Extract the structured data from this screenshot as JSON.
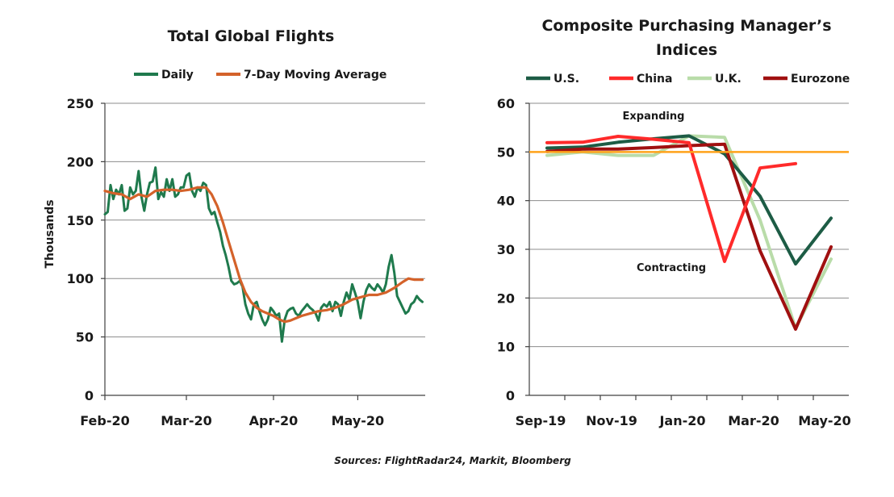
{
  "colors": {
    "daily": "#1f7a4d",
    "ma": "#d4622a",
    "us": "#1d5c45",
    "china": "#ff2a2a",
    "uk": "#b9dca9",
    "eurozone": "#a01010",
    "fifty_line": "#ffa21a"
  },
  "source_text": "Sources: FlightRadar24, Markit, Bloomberg",
  "chart_data": [
    {
      "type": "line",
      "title": "Total Global Flights",
      "ylabel": "Thousands",
      "xlabel": "",
      "ylim": [
        0,
        250
      ],
      "yticks": [
        0,
        50,
        100,
        150,
        200,
        250
      ],
      "xlim": [
        0,
        114
      ],
      "xticks": [
        {
          "x": 0,
          "label": "Feb-20"
        },
        {
          "x": 29,
          "label": "Mar-20"
        },
        {
          "x": 60,
          "label": "Apr-20"
        },
        {
          "x": 90,
          "label": "May-20"
        }
      ],
      "grid": "horizontal",
      "legend_position": "top",
      "series": [
        {
          "name": "Daily",
          "color_key": "daily",
          "x": [
            0,
            1,
            2,
            3,
            4,
            5,
            6,
            7,
            8,
            9,
            10,
            11,
            12,
            13,
            14,
            15,
            16,
            17,
            18,
            19,
            20,
            21,
            22,
            23,
            24,
            25,
            26,
            27,
            28,
            29,
            30,
            31,
            32,
            33,
            34,
            35,
            36,
            37,
            38,
            39,
            40,
            41,
            42,
            43,
            44,
            45,
            46,
            47,
            48,
            49,
            50,
            51,
            52,
            53,
            54,
            55,
            56,
            57,
            58,
            59,
            60,
            61,
            62,
            63,
            64,
            65,
            66,
            67,
            68,
            69,
            70,
            71,
            72,
            73,
            74,
            75,
            76,
            77,
            78,
            79,
            80,
            81,
            82,
            83,
            84,
            85,
            86,
            87,
            88,
            89,
            90,
            91,
            92,
            93,
            94,
            95,
            96,
            97,
            98,
            99,
            100,
            101,
            102,
            103,
            104,
            105,
            106,
            107,
            108,
            109,
            110,
            111,
            112,
            113
          ],
          "y": [
            155,
            157,
            180,
            168,
            176,
            172,
            180,
            158,
            160,
            178,
            172,
            175,
            192,
            170,
            158,
            172,
            182,
            183,
            195,
            168,
            174,
            170,
            185,
            175,
            185,
            170,
            172,
            178,
            178,
            188,
            190,
            175,
            170,
            178,
            175,
            182,
            180,
            160,
            155,
            157,
            148,
            140,
            128,
            120,
            110,
            98,
            95,
            96,
            98,
            93,
            78,
            70,
            65,
            78,
            80,
            72,
            65,
            60,
            65,
            75,
            72,
            68,
            70,
            46,
            65,
            72,
            74,
            75,
            70,
            68,
            72,
            75,
            78,
            75,
            73,
            70,
            64,
            75,
            78,
            76,
            80,
            72,
            80,
            78,
            68,
            80,
            88,
            82,
            95,
            88,
            80,
            66,
            80,
            90,
            95,
            92,
            90,
            95,
            92,
            88,
            95,
            110,
            120,
            105,
            85,
            80,
            75,
            70,
            72,
            78,
            80,
            85,
            82,
            80
          ]
        },
        {
          "name": "7-Day Moving Average",
          "color_key": "ma",
          "x": [
            0,
            3,
            6,
            9,
            12,
            15,
            18,
            21,
            24,
            27,
            30,
            33,
            36,
            38,
            40,
            42,
            44,
            46,
            48,
            50,
            52,
            54,
            56,
            58,
            60,
            62,
            64,
            66,
            68,
            70,
            73,
            76,
            79,
            82,
            85,
            88,
            91,
            94,
            97,
            100,
            103,
            106,
            108,
            110,
            113
          ],
          "y": [
            175,
            173,
            172,
            168,
            172,
            170,
            175,
            176,
            176,
            175,
            176,
            178,
            178,
            172,
            162,
            148,
            132,
            116,
            100,
            88,
            80,
            75,
            72,
            70,
            68,
            65,
            63,
            64,
            66,
            68,
            70,
            72,
            73,
            75,
            78,
            82,
            84,
            86,
            86,
            88,
            92,
            97,
            100,
            99,
            99
          ]
        }
      ]
    },
    {
      "type": "line",
      "title": "Composite Purchasing Manager’s Indices",
      "xlabel": "",
      "ylabel": "",
      "ylim": [
        0,
        60
      ],
      "yticks": [
        0,
        10,
        20,
        30,
        40,
        50,
        60
      ],
      "xlim": [
        0,
        9
      ],
      "xticks": [
        {
          "x": 0.25,
          "label": "Sep-19"
        },
        {
          "x": 2.25,
          "label": "Nov-19"
        },
        {
          "x": 4.25,
          "label": "Jan-20"
        },
        {
          "x": 6.25,
          "label": "Mar-20"
        },
        {
          "x": 8.25,
          "label": "May-20"
        }
      ],
      "grid": "horizontal",
      "legend_position": "top",
      "reference_line": {
        "y": 50,
        "color_key": "fifty_line"
      },
      "annotations": [
        {
          "text": "Expanding",
          "x": 3.5,
          "y": 56.7
        },
        {
          "text": "Contracting",
          "x": 4.0,
          "y": 25.5
        }
      ],
      "series": [
        {
          "name": "U.S.",
          "color_key": "us",
          "x": [
            0.5,
            1.5,
            2.5,
            3.5,
            4.5,
            5.5,
            6.5,
            7.5,
            8.5
          ],
          "y": [
            50.8,
            51.0,
            52.0,
            52.7,
            53.3,
            49.6,
            40.9,
            27.0,
            36.4
          ]
        },
        {
          "name": "China",
          "color_key": "china",
          "x": [
            0.5,
            1.5,
            2.5,
            3.5,
            4.5,
            5.5,
            6.5,
            7.5
          ],
          "y": [
            51.9,
            52.0,
            53.2,
            52.6,
            51.9,
            27.5,
            46.7,
            47.6
          ]
        },
        {
          "name": "U.K.",
          "color_key": "uk",
          "x": [
            0.5,
            1.5,
            2.5,
            3.5,
            4.5,
            5.5,
            6.5,
            7.5,
            8.5
          ],
          "y": [
            49.3,
            50.0,
            49.3,
            49.3,
            53.3,
            53.0,
            36.0,
            13.8,
            28.0
          ]
        },
        {
          "name": "Eurozone",
          "color_key": "eurozone",
          "x": [
            0.5,
            1.5,
            2.5,
            3.5,
            4.5,
            5.5,
            6.5,
            7.5,
            8.5
          ],
          "y": [
            50.1,
            50.6,
            50.6,
            50.9,
            51.3,
            51.6,
            29.7,
            13.6,
            30.5
          ]
        }
      ]
    }
  ]
}
